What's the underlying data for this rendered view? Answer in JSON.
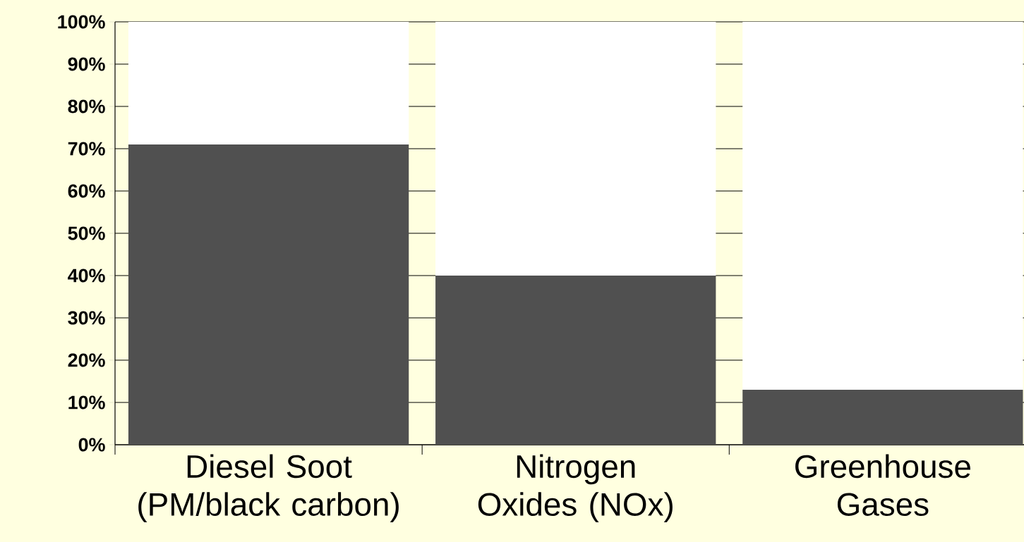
{
  "chart_data": {
    "type": "bar",
    "stacked": true,
    "categories": [
      "Diesel Soot (PM/black carbon)",
      "Nitrogen Oxides (NOx)",
      "Greenhouse Gases"
    ],
    "series": [
      {
        "color": "#505050",
        "values": [
          71,
          40,
          13
        ]
      },
      {
        "color": "#ffffff",
        "values": [
          29,
          60,
          87
        ]
      }
    ],
    "ylim": [
      0,
      100
    ],
    "yticks": [
      {
        "value": 0,
        "label": "0%"
      },
      {
        "value": 10,
        "label": "10%"
      },
      {
        "value": 20,
        "label": "20%"
      },
      {
        "value": 30,
        "label": "30%"
      },
      {
        "value": 40,
        "label": "40%"
      },
      {
        "value": 50,
        "label": "50%"
      },
      {
        "value": 60,
        "label": "60%"
      },
      {
        "value": 70,
        "label": "70%"
      },
      {
        "value": 80,
        "label": "80%"
      },
      {
        "value": 90,
        "label": "90%"
      },
      {
        "value": 100,
        "label": "100%"
      }
    ],
    "grid": "y"
  }
}
